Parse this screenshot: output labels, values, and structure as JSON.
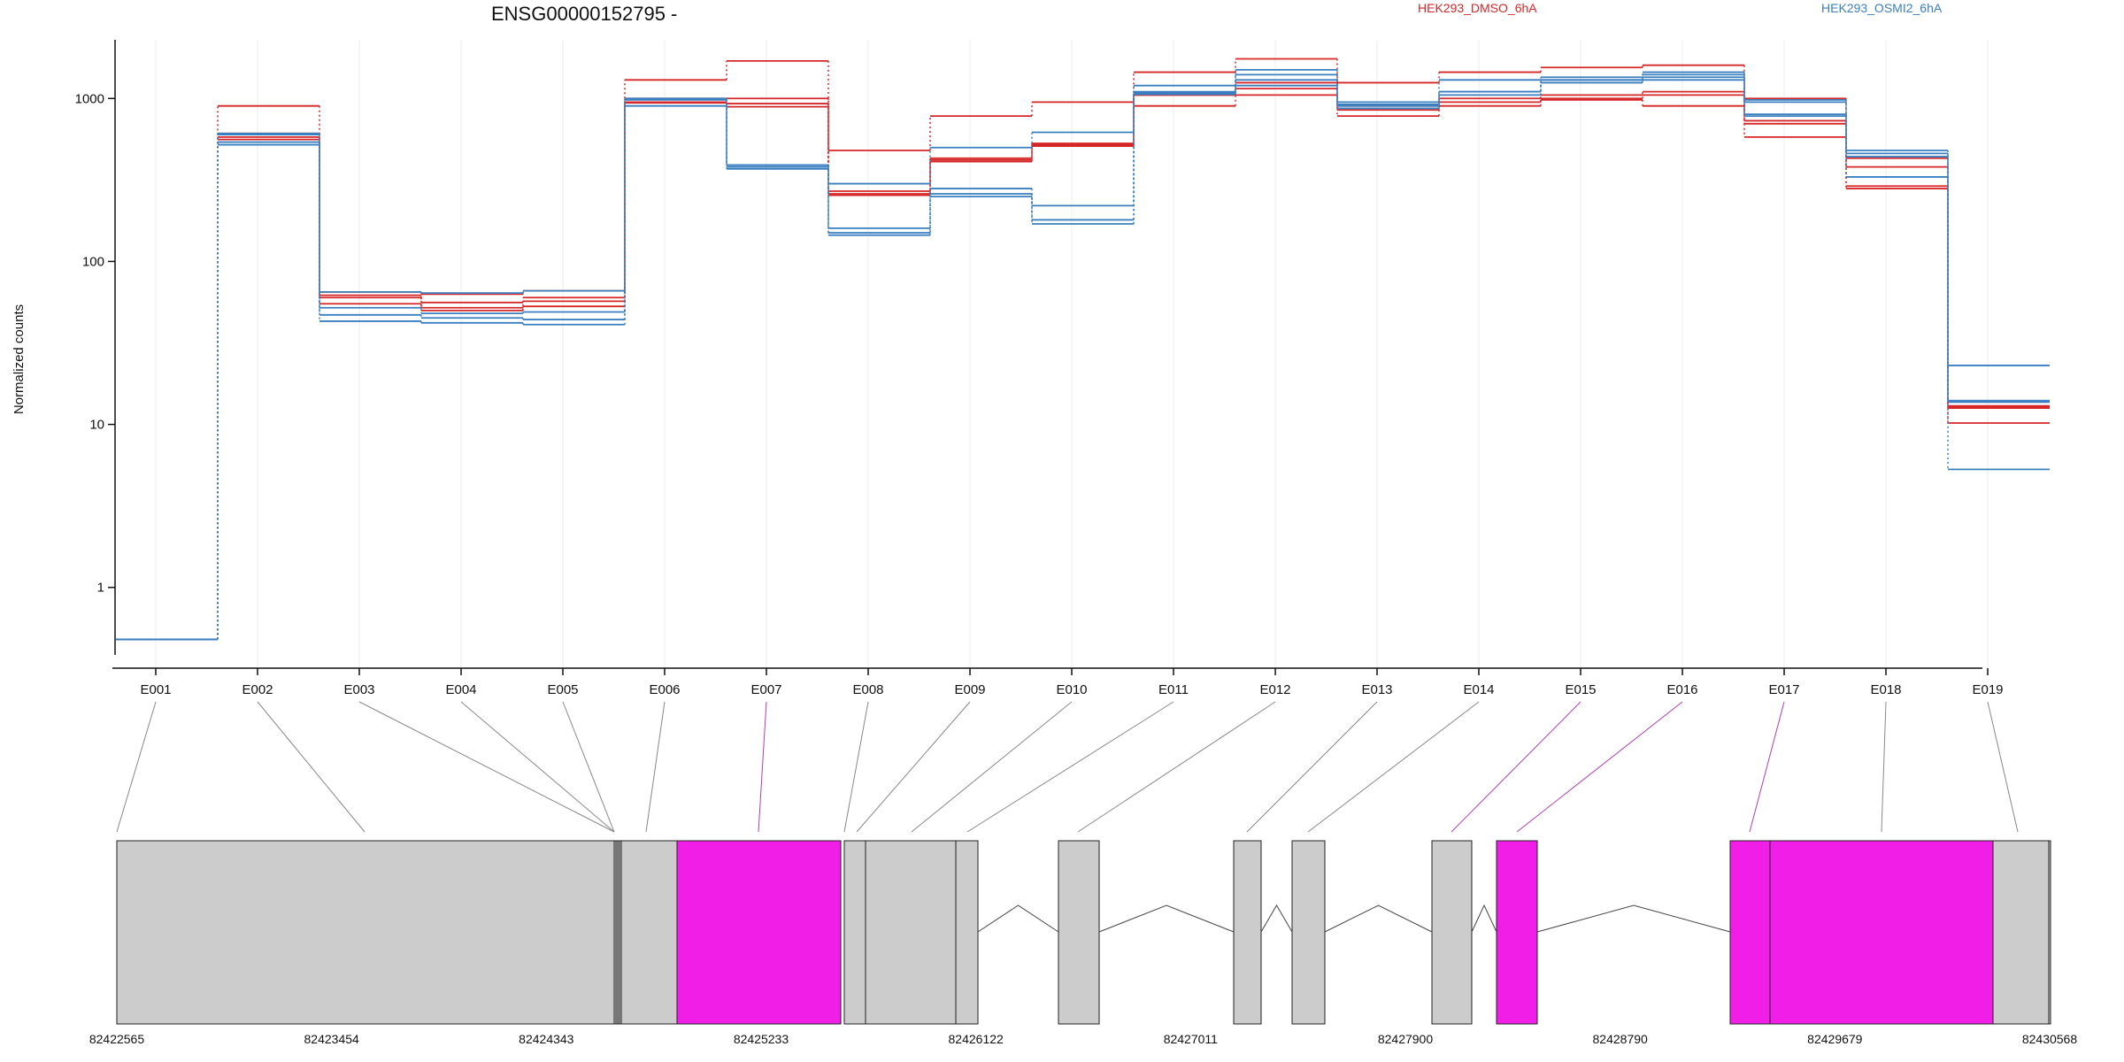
{
  "chart_data": {
    "type": "line",
    "title": "ENSG00000152795 -",
    "ylabel": "Normalized counts",
    "yscale": "log",
    "ylim": [
      0.4,
      2500
    ],
    "yticks": [
      "1",
      "10",
      "100",
      "1000"
    ],
    "grid": "vertical",
    "categories": [
      "E001",
      "E002",
      "E003",
      "E004",
      "E005",
      "E006",
      "E007",
      "E008",
      "E009",
      "E010",
      "E011",
      "E012",
      "E013",
      "E014",
      "E015",
      "E016",
      "E017",
      "E018",
      "E019"
    ],
    "legend": [
      {
        "label": "HEK293_DMSO_6hA",
        "color": "#d62728"
      },
      {
        "label": "HEK293_OSMI2_6hA",
        "color": "#3a7fc0"
      }
    ],
    "series": [
      {
        "group": 0,
        "values": [
          0.48,
          900,
          55,
          52,
          53,
          1300,
          1700,
          480,
          780,
          950,
          1450,
          1750,
          1250,
          1450,
          1550,
          1600,
          1000,
          430,
          13
        ]
      },
      {
        "group": 0,
        "values": [
          0.48,
          610,
          62,
          63,
          66,
          1000,
          1000,
          270,
          420,
          520,
          1050,
          1250,
          900,
          1000,
          1050,
          1050,
          730,
          380,
          12.8
        ]
      },
      {
        "group": 0,
        "values": [
          0.48,
          560,
          60,
          56,
          60,
          950,
          930,
          260,
          410,
          510,
          900,
          1150,
          850,
          950,
          1000,
          1100,
          700,
          290,
          10.2
        ]
      },
      {
        "group": 0,
        "values": [
          0.48,
          580,
          65,
          50,
          57,
          940,
          890,
          255,
          430,
          530,
          1050,
          1050,
          780,
          900,
          980,
          900,
          580,
          280,
          12.6
        ]
      },
      {
        "group": 1,
        "values": [
          0.48,
          600,
          65,
          64,
          66,
          1000,
          390,
          300,
          500,
          620,
          1200,
          1400,
          950,
          1300,
          1300,
          1400,
          980,
          480,
          23
        ]
      },
      {
        "group": 1,
        "values": [
          0.48,
          540,
          47,
          45,
          44,
          900,
          370,
          150,
          250,
          180,
          1100,
          1500,
          900,
          1100,
          1350,
          1350,
          950,
          460,
          14
        ]
      },
      {
        "group": 1,
        "values": [
          0.48,
          520,
          43,
          42,
          41,
          980,
          380,
          160,
          280,
          220,
          1060,
          1300,
          920,
          1050,
          1250,
          1300,
          800,
          330,
          13.7
        ]
      },
      {
        "group": 1,
        "values": [
          0.48,
          610,
          52,
          48,
          49,
          990,
          390,
          145,
          260,
          170,
          1080,
          1200,
          870,
          1100,
          1300,
          1450,
          780,
          440,
          5.3
        ]
      }
    ],
    "gene_model": {
      "coord_ticks": [
        "82422565",
        "82423454",
        "82424343",
        "82425233",
        "82426122",
        "82427011",
        "82427900",
        "82428790",
        "82429679",
        "82430568"
      ],
      "exons": [
        {
          "id": "E001",
          "kind": "normal"
        },
        {
          "id": "E002",
          "kind": "normal"
        },
        {
          "id": "E003",
          "kind": "normal"
        },
        {
          "id": "E004",
          "kind": "normal"
        },
        {
          "id": "E005",
          "kind": "normal"
        },
        {
          "id": "E006",
          "kind": "normal"
        },
        {
          "id": "E007",
          "kind": "highlight"
        },
        {
          "id": "E008",
          "kind": "normal"
        },
        {
          "id": "E009",
          "kind": "normal"
        },
        {
          "id": "E010",
          "kind": "normal"
        },
        {
          "id": "E011",
          "kind": "normal"
        },
        {
          "id": "E012",
          "kind": "normal"
        },
        {
          "id": "E013",
          "kind": "normal"
        },
        {
          "id": "E014",
          "kind": "normal"
        },
        {
          "id": "E015",
          "kind": "highlight"
        },
        {
          "id": "E016",
          "kind": "highlight"
        },
        {
          "id": "E017",
          "kind": "highlight"
        },
        {
          "id": "E018",
          "kind": "normal"
        },
        {
          "id": "E019",
          "kind": "normal"
        }
      ],
      "highlight_color": "#f01ee6",
      "normal_color": "#cccccc"
    }
  }
}
